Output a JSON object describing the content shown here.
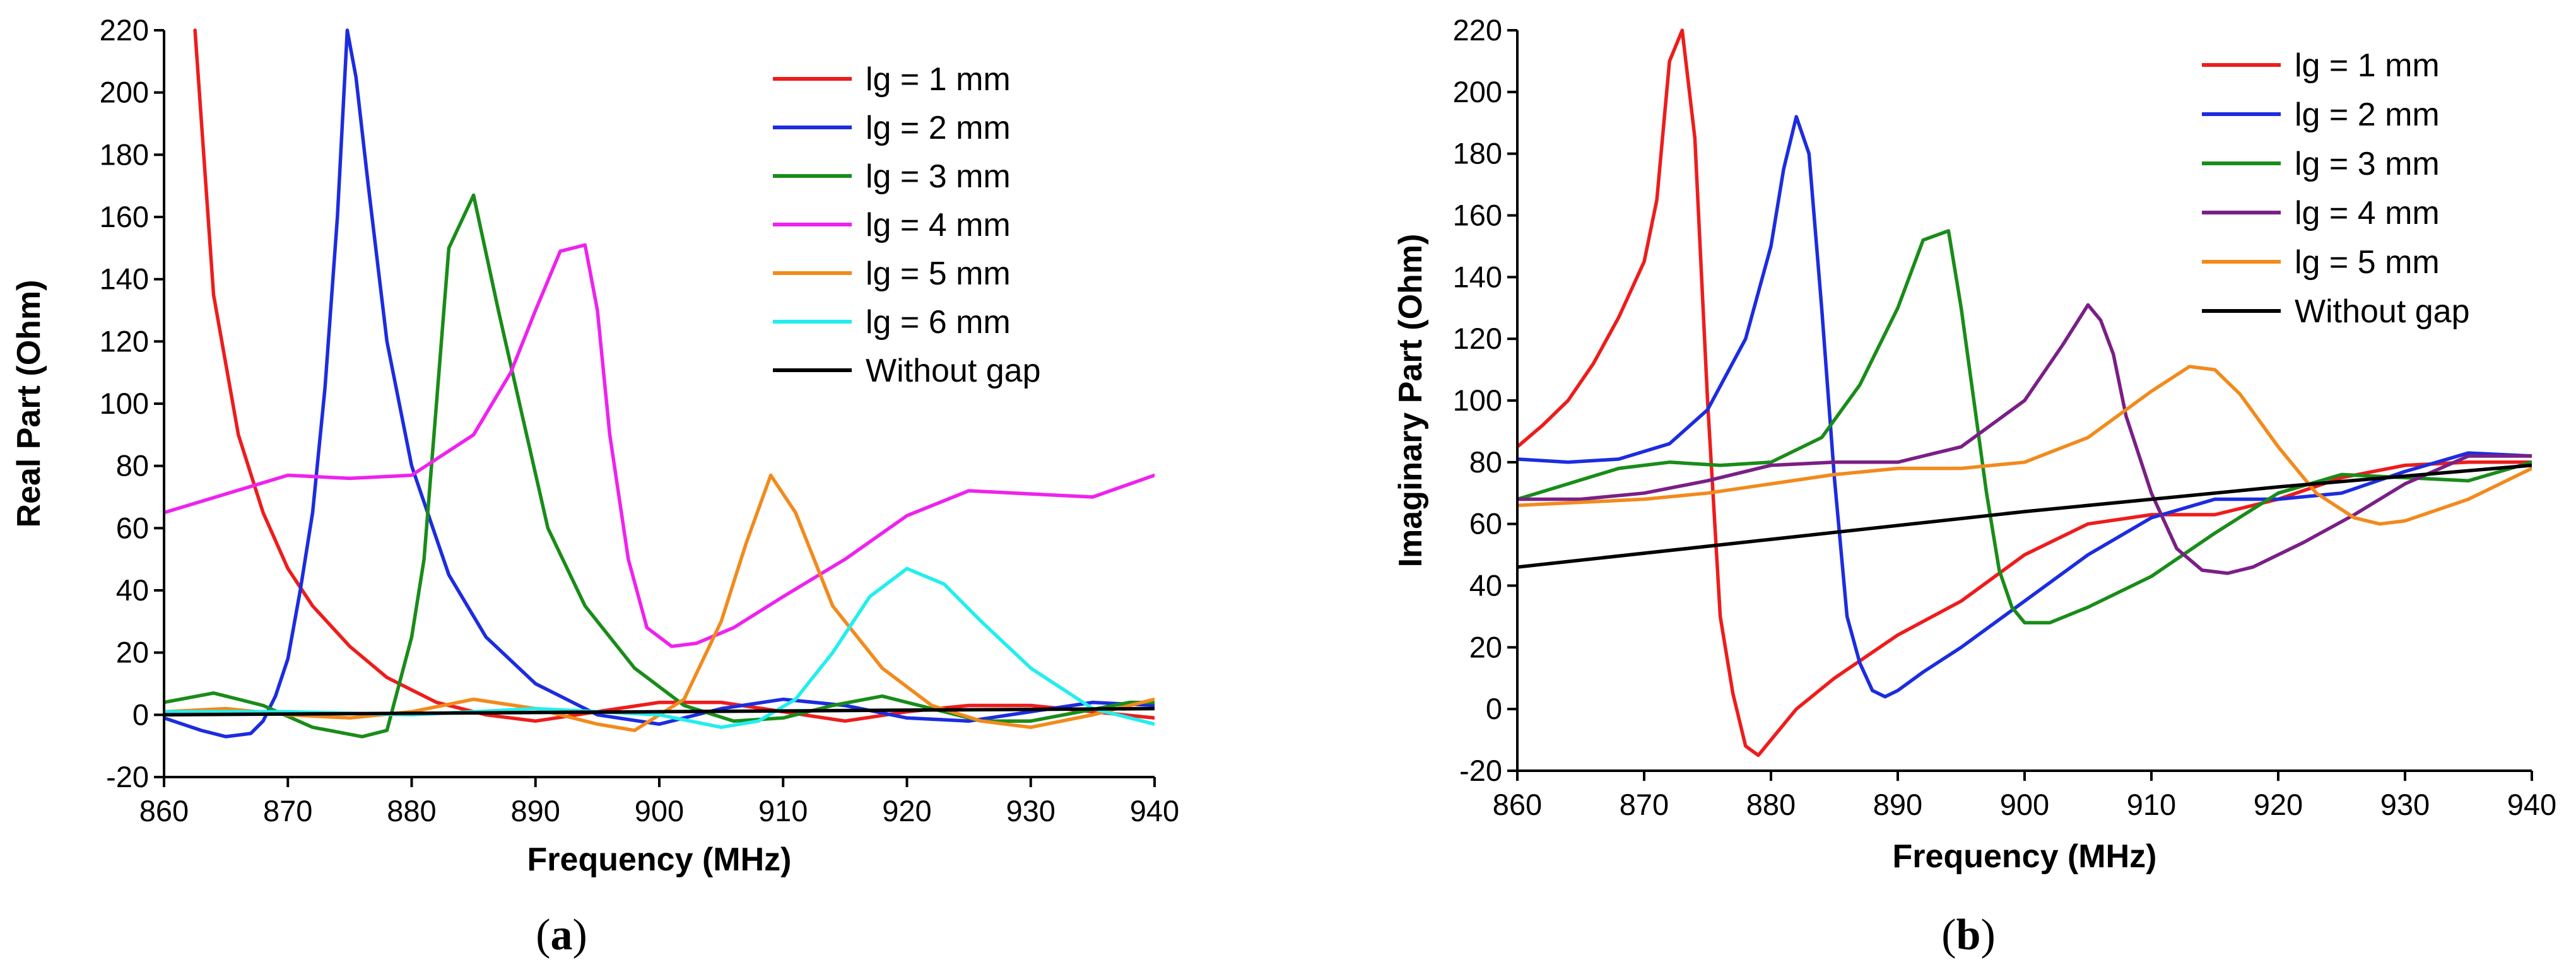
{
  "chart_data": [
    {
      "type": "line",
      "panel": "a",
      "caption_open": "(",
      "caption_letter": "a",
      "caption_close": ")",
      "xlabel": "Frequency (MHz)",
      "ylabel": "Real Part (Ohm)",
      "xlim": [
        860,
        940
      ],
      "ylim": [
        -20,
        220
      ],
      "xticks": [
        860,
        870,
        880,
        890,
        900,
        910,
        920,
        930,
        940
      ],
      "yticks": [
        -20,
        0,
        20,
        40,
        60,
        80,
        100,
        120,
        140,
        160,
        180,
        200,
        220
      ],
      "legend_position": "top-right",
      "series": [
        {
          "name": "lg = 1 mm",
          "color": "#ee1c1c",
          "x": [
            862.5,
            864,
            866,
            868,
            870,
            872,
            875,
            878,
            882,
            886,
            890,
            895,
            900,
            905,
            910,
            915,
            920,
            925,
            930,
            935,
            940
          ],
          "y": [
            220,
            135,
            90,
            65,
            47,
            35,
            22,
            12,
            4,
            0,
            -2,
            1,
            4,
            4,
            1,
            -2,
            1,
            3,
            3,
            1,
            -1
          ]
        },
        {
          "name": "lg = 2 mm",
          "color": "#1c2ce0",
          "x": [
            860,
            863,
            865,
            867,
            868,
            869,
            870,
            871,
            872,
            873,
            874,
            874.8,
            875.5,
            876.5,
            878,
            880,
            883,
            886,
            890,
            895,
            900,
            905,
            910,
            915,
            920,
            925,
            930,
            935,
            940
          ],
          "y": [
            -1,
            -5,
            -7,
            -6,
            -2,
            6,
            18,
            40,
            65,
            105,
            160,
            220,
            205,
            170,
            120,
            80,
            45,
            25,
            10,
            0,
            -3,
            2,
            5,
            3,
            -1,
            -2,
            1,
            4,
            3
          ]
        },
        {
          "name": "lg = 3 mm",
          "color": "#198c19",
          "x": [
            860,
            864,
            868,
            872,
            876,
            878,
            879,
            880,
            881,
            882,
            883,
            885,
            887,
            889,
            891,
            894,
            898,
            902,
            906,
            910,
            914,
            918,
            922,
            926,
            930,
            934,
            938,
            940
          ],
          "y": [
            4,
            7,
            3,
            -4,
            -7,
            -5,
            10,
            25,
            50,
            100,
            150,
            167,
            130,
            95,
            60,
            35,
            15,
            3,
            -2,
            -1,
            3,
            6,
            2,
            -2,
            -2,
            1,
            4,
            4
          ]
        },
        {
          "name": "lg = 4 mm",
          "color": "#ee22ee",
          "x": [
            860,
            865,
            870,
            875,
            880,
            885,
            888,
            890,
            892,
            894,
            895,
            896,
            897.5,
            899,
            901,
            903,
            906,
            910,
            915,
            920,
            925,
            930,
            935,
            940
          ],
          "y": [
            65,
            71,
            77,
            76,
            77,
            90,
            110,
            130,
            149,
            151,
            130,
            90,
            50,
            28,
            22,
            23,
            28,
            38,
            50,
            64,
            72,
            71,
            70,
            77
          ]
        },
        {
          "name": "lg = 5 mm",
          "color": "#f28a1c",
          "x": [
            860,
            865,
            870,
            875,
            880,
            885,
            890,
            895,
            898,
            902,
            905,
            907,
            909,
            911,
            914,
            918,
            922,
            926,
            930,
            935,
            940
          ],
          "y": [
            1,
            2,
            0,
            -1,
            1,
            5,
            2,
            -3,
            -5,
            5,
            30,
            55,
            77,
            65,
            35,
            15,
            3,
            -2,
            -4,
            0,
            5
          ]
        },
        {
          "name": "lg = 6 mm",
          "color": "#22eeee",
          "x": [
            860,
            870,
            880,
            890,
            900,
            905,
            908,
            911,
            914,
            917,
            920,
            923,
            926,
            930,
            935,
            940
          ],
          "y": [
            1,
            1,
            0,
            2,
            0,
            -4,
            -2,
            5,
            20,
            38,
            47,
            42,
            30,
            15,
            2,
            -3
          ]
        },
        {
          "name": "Without gap",
          "color": "#000000",
          "x": [
            860,
            880,
            900,
            920,
            940
          ],
          "y": [
            0,
            0.5,
            1,
            1.5,
            2
          ]
        }
      ]
    },
    {
      "type": "line",
      "panel": "b",
      "caption_open": "(",
      "caption_letter": "b",
      "caption_close": ")",
      "xlabel": "Frequency (MHz)",
      "ylabel": "Imaginary Part (Ohm)",
      "xlim": [
        860,
        940
      ],
      "ylim": [
        -20,
        220
      ],
      "xticks": [
        860,
        870,
        880,
        890,
        900,
        910,
        920,
        930,
        940
      ],
      "yticks": [
        -20,
        0,
        20,
        40,
        60,
        80,
        100,
        120,
        140,
        160,
        180,
        200,
        220
      ],
      "legend_position": "top-right",
      "series": [
        {
          "name": "lg = 1 mm",
          "color": "#ee1c1c",
          "x": [
            860,
            862,
            864,
            866,
            868,
            870,
            871,
            872,
            873,
            874,
            875,
            876,
            877,
            878,
            879,
            880,
            882,
            885,
            890,
            895,
            900,
            905,
            910,
            915,
            920,
            925,
            930,
            935,
            940
          ],
          "y": [
            85,
            92,
            100,
            112,
            127,
            145,
            165,
            210,
            220,
            185,
            100,
            30,
            5,
            -12,
            -15,
            -10,
            0,
            10,
            24,
            35,
            50,
            60,
            63,
            63,
            68,
            75,
            79,
            80,
            80
          ]
        },
        {
          "name": "lg = 2 mm",
          "color": "#1c2ce0",
          "x": [
            860,
            864,
            868,
            872,
            875,
            878,
            880,
            881,
            882,
            883,
            884,
            885,
            886,
            887,
            888,
            889,
            890,
            892,
            895,
            900,
            905,
            910,
            915,
            920,
            925,
            930,
            935,
            940
          ],
          "y": [
            81,
            80,
            81,
            86,
            97,
            120,
            150,
            175,
            192,
            180,
            130,
            75,
            30,
            15,
            6,
            4,
            6,
            12,
            20,
            35,
            50,
            62,
            68,
            68,
            70,
            77,
            83,
            82
          ]
        },
        {
          "name": "lg = 3 mm",
          "color": "#198c19",
          "x": [
            860,
            864,
            868,
            872,
            876,
            880,
            884,
            887,
            890,
            892,
            894,
            895,
            896,
            897,
            898,
            899,
            900,
            902,
            905,
            910,
            915,
            920,
            925,
            930,
            935,
            940
          ],
          "y": [
            68,
            73,
            78,
            80,
            79,
            80,
            88,
            105,
            130,
            152,
            155,
            130,
            100,
            70,
            45,
            33,
            28,
            28,
            33,
            43,
            57,
            70,
            76,
            75,
            74,
            80
          ]
        },
        {
          "name": "lg = 4 mm",
          "color": "#7a1f86",
          "x": [
            860,
            865,
            870,
            875,
            880,
            885,
            890,
            895,
            900,
            903,
            905,
            906,
            907,
            908,
            910,
            912,
            914,
            916,
            918,
            922,
            926,
            930,
            935,
            940
          ],
          "y": [
            68,
            68,
            70,
            74,
            79,
            80,
            80,
            85,
            100,
            118,
            131,
            126,
            115,
            95,
            70,
            52,
            45,
            44,
            46,
            54,
            63,
            73,
            82,
            82
          ]
        },
        {
          "name": "lg = 5 mm",
          "color": "#f28a1c",
          "x": [
            860,
            865,
            870,
            875,
            880,
            885,
            890,
            895,
            900,
            905,
            910,
            913,
            915,
            917,
            920,
            923,
            926,
            928,
            930,
            935,
            940
          ],
          "y": [
            66,
            67,
            68,
            70,
            73,
            76,
            78,
            78,
            80,
            88,
            103,
            111,
            110,
            102,
            85,
            70,
            62,
            60,
            61,
            68,
            78
          ]
        },
        {
          "name": "Without gap",
          "color": "#000000",
          "x": [
            860,
            880,
            900,
            920,
            940
          ],
          "y": [
            46,
            55,
            64,
            72,
            79
          ]
        }
      ]
    }
  ]
}
